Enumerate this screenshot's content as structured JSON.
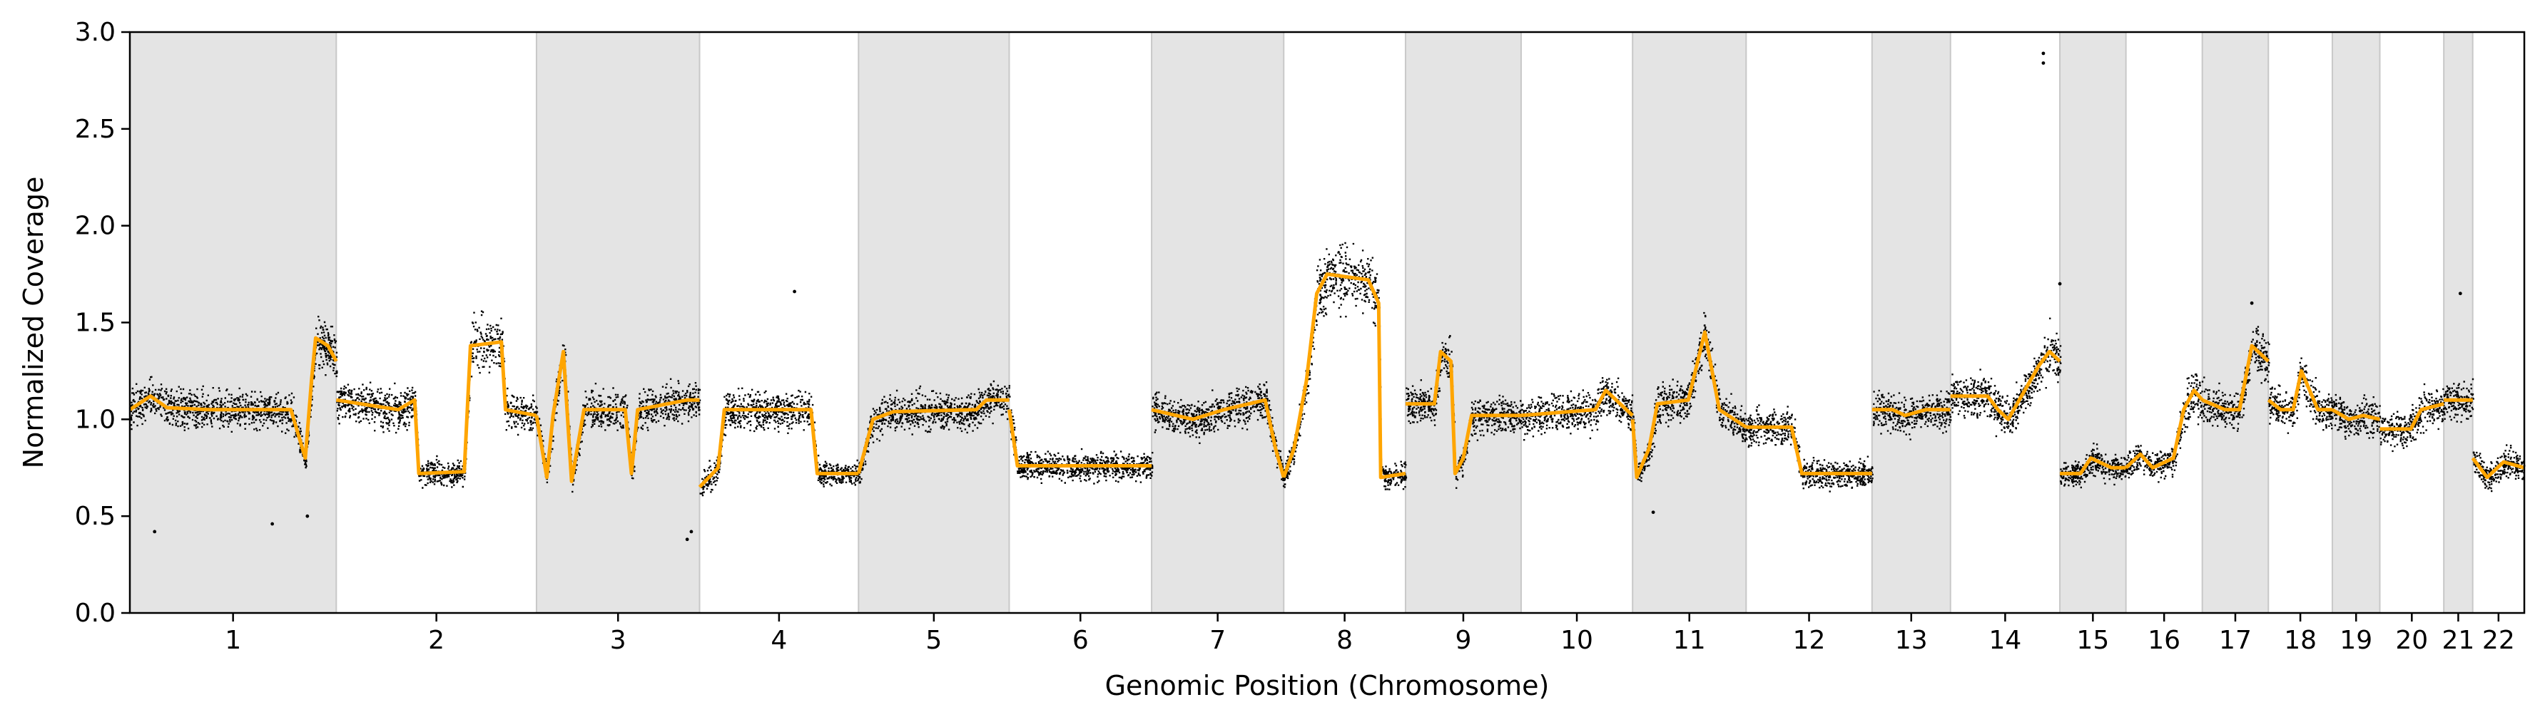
{
  "chart_data": {
    "type": "scatter",
    "title": "",
    "xlabel": "Genomic Position (Chromosome)",
    "ylabel": "Normalized Coverage",
    "ylim": [
      0.0,
      3.0
    ],
    "yticks": [
      "0.0",
      "0.5",
      "1.0",
      "1.5",
      "2.0",
      "2.5",
      "3.0"
    ],
    "grid": false,
    "legend": "none",
    "colors": {
      "points": "#000000",
      "segments": "#FFA500",
      "shading": "#e4e4e4",
      "boundary": "#c8c8c8"
    },
    "chromosomes": [
      {
        "name": "1",
        "start": 0.0,
        "end": 1.0,
        "shaded": true
      },
      {
        "name": "2",
        "start": 1.0,
        "end": 1.97,
        "shaded": false
      },
      {
        "name": "3",
        "start": 1.97,
        "end": 2.76,
        "shaded": true
      },
      {
        "name": "4",
        "start": 2.76,
        "end": 3.53,
        "shaded": false
      },
      {
        "name": "5",
        "start": 3.53,
        "end": 4.26,
        "shaded": true
      },
      {
        "name": "6",
        "start": 4.26,
        "end": 4.95,
        "shaded": false
      },
      {
        "name": "7",
        "start": 4.95,
        "end": 5.59,
        "shaded": true
      },
      {
        "name": "8",
        "start": 5.59,
        "end": 6.18,
        "shaded": false
      },
      {
        "name": "9",
        "start": 6.18,
        "end": 6.74,
        "shaded": true
      },
      {
        "name": "10",
        "start": 6.74,
        "end": 7.28,
        "shaded": false
      },
      {
        "name": "11",
        "start": 7.28,
        "end": 7.83,
        "shaded": true
      },
      {
        "name": "12",
        "start": 7.83,
        "end": 8.44,
        "shaded": false
      },
      {
        "name": "13",
        "start": 8.44,
        "end": 8.82,
        "shaded": true
      },
      {
        "name": "14",
        "start": 8.82,
        "end": 9.35,
        "shaded": false
      },
      {
        "name": "15",
        "start": 9.35,
        "end": 9.67,
        "shaded": true
      },
      {
        "name": "16",
        "start": 9.67,
        "end": 10.04,
        "shaded": false
      },
      {
        "name": "17",
        "start": 10.04,
        "end": 10.36,
        "shaded": true
      },
      {
        "name": "18",
        "start": 10.36,
        "end": 10.67,
        "shaded": false
      },
      {
        "name": "19",
        "start": 10.67,
        "end": 10.9,
        "shaded": true
      },
      {
        "name": "20",
        "start": 10.9,
        "end": 11.21,
        "shaded": false
      },
      {
        "name": "21",
        "start": 11.21,
        "end": 11.35,
        "shaded": true
      },
      {
        "name": "22",
        "start": 11.35,
        "end": 11.6,
        "shaded": false
      }
    ],
    "xlim": [
      0.0,
      11.6
    ],
    "segments": [
      [
        [
          0.0,
          1.05
        ],
        [
          0.1,
          1.12
        ],
        [
          0.18,
          1.06
        ],
        [
          0.38,
          1.05
        ],
        [
          0.6,
          1.05
        ],
        [
          0.78,
          1.05
        ],
        [
          0.85,
          0.8
        ],
        [
          0.88,
          1.2
        ],
        [
          0.9,
          1.42
        ],
        [
          0.96,
          1.38
        ],
        [
          1.0,
          1.3
        ]
      ],
      [
        [
          1.0,
          1.1
        ],
        [
          1.3,
          1.05
        ],
        [
          1.38,
          1.1
        ],
        [
          1.4,
          0.72
        ],
        [
          1.62,
          0.73
        ],
        [
          1.65,
          1.38
        ],
        [
          1.8,
          1.4
        ],
        [
          1.82,
          1.05
        ],
        [
          1.97,
          1.02
        ]
      ],
      [
        [
          1.97,
          1.02
        ],
        [
          2.02,
          0.7
        ],
        [
          2.05,
          1.02
        ],
        [
          2.1,
          1.35
        ],
        [
          2.14,
          0.68
        ],
        [
          2.2,
          1.05
        ],
        [
          2.4,
          1.05
        ],
        [
          2.43,
          0.72
        ],
        [
          2.46,
          1.05
        ],
        [
          2.7,
          1.1
        ],
        [
          2.76,
          1.1
        ]
      ],
      [
        [
          2.76,
          0.65
        ],
        [
          2.85,
          0.75
        ],
        [
          2.88,
          1.05
        ],
        [
          3.3,
          1.05
        ],
        [
          3.33,
          0.72
        ],
        [
          3.53,
          0.72
        ]
      ],
      [
        [
          3.53,
          0.72
        ],
        [
          3.6,
          1.0
        ],
        [
          3.7,
          1.04
        ],
        [
          4.1,
          1.05
        ],
        [
          4.15,
          1.1
        ],
        [
          4.26,
          1.1
        ]
      ],
      [
        [
          4.26,
          1.05
        ],
        [
          4.3,
          0.76
        ],
        [
          4.95,
          0.76
        ]
      ],
      [
        [
          4.95,
          1.05
        ],
        [
          5.15,
          1.0
        ],
        [
          5.3,
          1.05
        ],
        [
          5.5,
          1.1
        ],
        [
          5.55,
          0.85
        ],
        [
          5.59,
          0.7
        ]
      ],
      [
        [
          5.59,
          0.7
        ],
        [
          5.64,
          0.85
        ],
        [
          5.7,
          1.2
        ],
        [
          5.75,
          1.65
        ],
        [
          5.8,
          1.75
        ],
        [
          6.0,
          1.72
        ],
        [
          6.05,
          1.6
        ],
        [
          6.06,
          0.7
        ],
        [
          6.18,
          0.72
        ]
      ],
      [
        [
          6.18,
          1.08
        ],
        [
          6.32,
          1.08
        ],
        [
          6.35,
          1.35
        ],
        [
          6.4,
          1.3
        ],
        [
          6.42,
          0.72
        ],
        [
          6.46,
          0.8
        ],
        [
          6.5,
          1.02
        ],
        [
          6.74,
          1.02
        ]
      ],
      [
        [
          6.74,
          1.02
        ],
        [
          7.1,
          1.05
        ],
        [
          7.15,
          1.15
        ],
        [
          7.28,
          1.02
        ]
      ],
      [
        [
          7.28,
          1.0
        ],
        [
          7.3,
          0.7
        ],
        [
          7.36,
          0.85
        ],
        [
          7.4,
          1.08
        ],
        [
          7.55,
          1.1
        ],
        [
          7.63,
          1.45
        ],
        [
          7.7,
          1.05
        ],
        [
          7.83,
          0.96
        ]
      ],
      [
        [
          7.83,
          0.96
        ],
        [
          8.05,
          0.96
        ],
        [
          8.1,
          0.72
        ],
        [
          8.3,
          0.72
        ],
        [
          8.36,
          0.72
        ],
        [
          8.4,
          0.72
        ],
        [
          8.44,
          0.72
        ]
      ],
      [
        [
          8.44,
          1.05
        ],
        [
          8.54,
          1.05
        ],
        [
          8.6,
          1.02
        ],
        [
          8.7,
          1.05
        ],
        [
          8.82,
          1.05
        ]
      ],
      [
        [
          8.82,
          1.12
        ],
        [
          9.0,
          1.12
        ],
        [
          9.05,
          1.05
        ],
        [
          9.1,
          1.0
        ],
        [
          9.25,
          1.28
        ],
        [
          9.3,
          1.35
        ],
        [
          9.35,
          1.3
        ]
      ],
      [
        [
          9.35,
          0.72
        ],
        [
          9.45,
          0.72
        ],
        [
          9.5,
          0.8
        ],
        [
          9.6,
          0.75
        ],
        [
          9.67,
          0.75
        ]
      ],
      [
        [
          9.67,
          0.75
        ],
        [
          9.74,
          0.82
        ],
        [
          9.8,
          0.75
        ],
        [
          9.9,
          0.8
        ],
        [
          9.95,
          1.05
        ],
        [
          10.0,
          1.15
        ],
        [
          10.04,
          1.1
        ]
      ],
      [
        [
          10.04,
          1.1
        ],
        [
          10.15,
          1.05
        ],
        [
          10.22,
          1.05
        ],
        [
          10.28,
          1.38
        ],
        [
          10.36,
          1.3
        ]
      ],
      [
        [
          10.36,
          1.1
        ],
        [
          10.42,
          1.05
        ],
        [
          10.48,
          1.05
        ],
        [
          10.52,
          1.25
        ],
        [
          10.6,
          1.05
        ],
        [
          10.67,
          1.05
        ]
      ],
      [
        [
          10.67,
          1.05
        ],
        [
          10.75,
          1.0
        ],
        [
          10.82,
          1.02
        ],
        [
          10.9,
          1.0
        ]
      ],
      [
        [
          10.9,
          0.95
        ],
        [
          11.05,
          0.95
        ],
        [
          11.1,
          1.05
        ],
        [
          11.21,
          1.08
        ]
      ],
      [
        [
          11.21,
          1.1
        ],
        [
          11.3,
          1.1
        ],
        [
          11.35,
          1.1
        ]
      ],
      [
        [
          11.35,
          0.8
        ],
        [
          11.42,
          0.7
        ],
        [
          11.5,
          0.78
        ],
        [
          11.6,
          0.75
        ]
      ]
    ],
    "outliers": [
      [
        0.12,
        0.42
      ],
      [
        0.69,
        0.46
      ],
      [
        0.86,
        0.5
      ],
      [
        3.22,
        1.66
      ],
      [
        2.7,
        0.38
      ],
      [
        2.72,
        0.42
      ],
      [
        7.38,
        0.52
      ],
      [
        9.27,
        2.84
      ],
      [
        9.27,
        2.89
      ],
      [
        9.35,
        1.7
      ],
      [
        10.28,
        1.6
      ],
      [
        11.29,
        1.65
      ]
    ]
  }
}
